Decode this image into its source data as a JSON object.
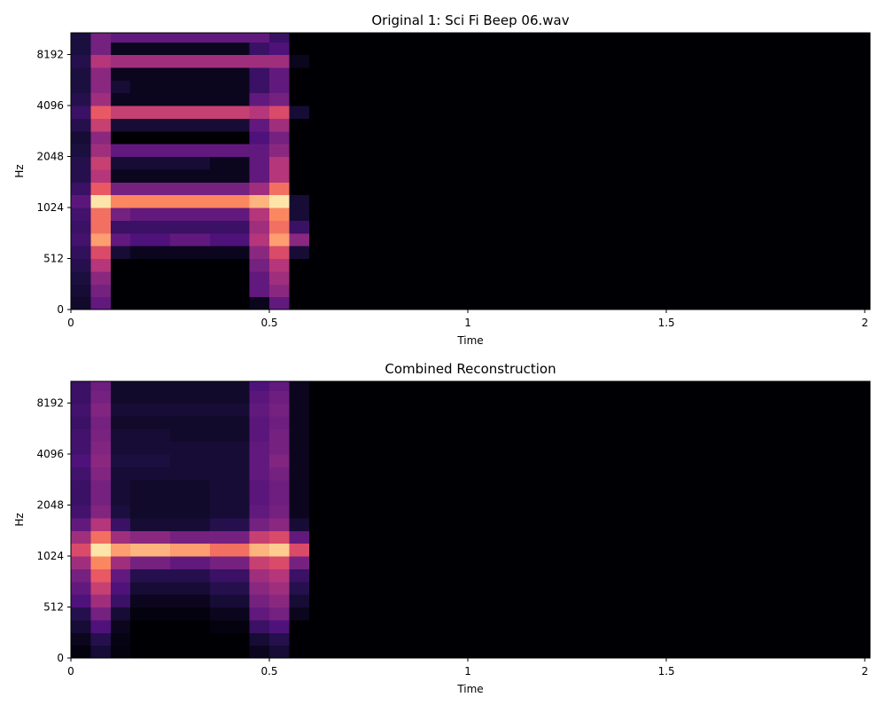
{
  "chart_data": [
    {
      "type": "spectrogram",
      "title": "Original 1: Sci Fi Beep 06.wav",
      "xlabel": "Time",
      "ylabel": "Hz",
      "xlim": [
        0,
        2.013
      ],
      "xticks": [
        0,
        0.5,
        1,
        1.5,
        2
      ],
      "ylim": [
        0,
        11025
      ],
      "yticks": [
        0,
        512,
        1024,
        2048,
        4096,
        8192
      ],
      "yscale": "symlog",
      "linthresh": 512,
      "colormap": "magma",
      "xbins": [
        0,
        0.05,
        0.1,
        0.15,
        0.25,
        0.35,
        0.45,
        0.5,
        0.55,
        0.6,
        2.013
      ],
      "ybins": [
        0,
        128,
        256,
        384,
        512,
        609,
        724,
        861,
        1024,
        1218,
        1448,
        1722,
        2048,
        2435,
        2896,
        3444,
        4096,
        4871,
        5793,
        6889,
        8192,
        9742,
        11025
      ],
      "z": [
        [
          0.08,
          0.3,
          0,
          0,
          0,
          0,
          0.05,
          0.3,
          0,
          0
        ],
        [
          0.1,
          0.35,
          0,
          0,
          0,
          0,
          0.3,
          0.4,
          0,
          0
        ],
        [
          0.12,
          0.4,
          0,
          0,
          0,
          0,
          0.3,
          0.45,
          0,
          0
        ],
        [
          0.15,
          0.5,
          0,
          0,
          0,
          0,
          0.35,
          0.5,
          0,
          0
        ],
        [
          0.18,
          0.6,
          0.1,
          0.05,
          0.05,
          0.05,
          0.4,
          0.6,
          0.1,
          0
        ],
        [
          0.22,
          0.8,
          0.3,
          0.25,
          0.3,
          0.25,
          0.5,
          0.8,
          0.4,
          0
        ],
        [
          0.2,
          0.7,
          0.2,
          0.2,
          0.2,
          0.2,
          0.45,
          0.7,
          0.2,
          0
        ],
        [
          0.22,
          0.7,
          0.35,
          0.3,
          0.3,
          0.3,
          0.5,
          0.75,
          0.1,
          0
        ],
        [
          0.28,
          0.95,
          0.75,
          0.75,
          0.75,
          0.75,
          0.85,
          0.95,
          0.1,
          0
        ],
        [
          0.2,
          0.65,
          0.35,
          0.35,
          0.35,
          0.35,
          0.45,
          0.7,
          0,
          0
        ],
        [
          0.15,
          0.5,
          0.05,
          0.05,
          0.05,
          0.05,
          0.3,
          0.5,
          0,
          0
        ],
        [
          0.15,
          0.55,
          0.1,
          0.1,
          0.1,
          0.05,
          0.3,
          0.5,
          0,
          0
        ],
        [
          0.12,
          0.45,
          0.3,
          0.3,
          0.3,
          0.3,
          0.3,
          0.4,
          0,
          0
        ],
        [
          0.1,
          0.4,
          0,
          0,
          0,
          0,
          0.25,
          0.35,
          0,
          0
        ],
        [
          0.15,
          0.55,
          0.1,
          0.1,
          0.1,
          0.1,
          0.3,
          0.45,
          0,
          0
        ],
        [
          0.2,
          0.65,
          0.55,
          0.55,
          0.55,
          0.55,
          0.5,
          0.6,
          0.1,
          0
        ],
        [
          0.15,
          0.45,
          0.05,
          0.05,
          0.05,
          0.05,
          0.3,
          0.35,
          0,
          0
        ],
        [
          0.12,
          0.4,
          0.1,
          0.05,
          0.05,
          0.05,
          0.2,
          0.3,
          0,
          0
        ],
        [
          0.12,
          0.4,
          0.05,
          0.05,
          0.05,
          0.05,
          0.2,
          0.3,
          0,
          0
        ],
        [
          0.15,
          0.5,
          0.45,
          0.45,
          0.45,
          0.45,
          0.45,
          0.45,
          0.05,
          0
        ],
        [
          0.12,
          0.35,
          0.05,
          0.05,
          0.05,
          0.05,
          0.2,
          0.25,
          0,
          0
        ],
        [
          0.12,
          0.35,
          0.3,
          0.3,
          0.3,
          0.3,
          0.3,
          0.2,
          0,
          0
        ]
      ]
    },
    {
      "type": "spectrogram",
      "title": "Combined Reconstruction",
      "xlabel": "Time",
      "ylabel": "Hz",
      "xlim": [
        0,
        2.013
      ],
      "xticks": [
        0,
        0.5,
        1,
        1.5,
        2
      ],
      "ylim": [
        0,
        11025
      ],
      "yticks": [
        0,
        512,
        1024,
        2048,
        4096,
        8192
      ],
      "yscale": "symlog",
      "linthresh": 512,
      "colormap": "magma",
      "xbins": [
        0,
        0.05,
        0.1,
        0.15,
        0.25,
        0.35,
        0.45,
        0.5,
        0.55,
        0.6,
        2.013
      ],
      "ybins": [
        0,
        128,
        256,
        384,
        512,
        609,
        724,
        861,
        1024,
        1218,
        1448,
        1722,
        2048,
        2435,
        2896,
        3444,
        4096,
        4871,
        5793,
        6889,
        8192,
        9742,
        11025
      ],
      "z": [
        [
          0.02,
          0.1,
          0.02,
          0,
          0,
          0,
          0.05,
          0.1,
          0,
          0
        ],
        [
          0.05,
          0.15,
          0.03,
          0,
          0,
          0,
          0.1,
          0.15,
          0,
          0
        ],
        [
          0.1,
          0.25,
          0.05,
          0,
          0,
          0.02,
          0.2,
          0.25,
          0,
          0
        ],
        [
          0.15,
          0.35,
          0.1,
          0.02,
          0.02,
          0.05,
          0.3,
          0.35,
          0.05,
          0
        ],
        [
          0.25,
          0.45,
          0.2,
          0.05,
          0.05,
          0.1,
          0.35,
          0.4,
          0.1,
          0
        ],
        [
          0.3,
          0.55,
          0.25,
          0.1,
          0.1,
          0.15,
          0.4,
          0.45,
          0.15,
          0
        ],
        [
          0.35,
          0.65,
          0.3,
          0.15,
          0.15,
          0.2,
          0.45,
          0.5,
          0.2,
          0
        ],
        [
          0.45,
          0.75,
          0.45,
          0.35,
          0.3,
          0.35,
          0.55,
          0.6,
          0.35,
          0
        ],
        [
          0.6,
          0.95,
          0.8,
          0.85,
          0.8,
          0.7,
          0.85,
          0.9,
          0.6,
          0
        ],
        [
          0.45,
          0.7,
          0.45,
          0.4,
          0.35,
          0.35,
          0.55,
          0.6,
          0.3,
          0
        ],
        [
          0.3,
          0.5,
          0.2,
          0.1,
          0.1,
          0.15,
          0.35,
          0.4,
          0.1,
          0
        ],
        [
          0.22,
          0.38,
          0.12,
          0.08,
          0.08,
          0.1,
          0.3,
          0.35,
          0.05,
          0
        ],
        [
          0.2,
          0.35,
          0.1,
          0.08,
          0.08,
          0.1,
          0.28,
          0.33,
          0.05,
          0
        ],
        [
          0.2,
          0.35,
          0.1,
          0.08,
          0.08,
          0.1,
          0.28,
          0.33,
          0.05,
          0
        ],
        [
          0.22,
          0.38,
          0.1,
          0.1,
          0.1,
          0.1,
          0.3,
          0.35,
          0.05,
          0
        ],
        [
          0.25,
          0.4,
          0.12,
          0.12,
          0.1,
          0.1,
          0.3,
          0.38,
          0.05,
          0
        ],
        [
          0.22,
          0.38,
          0.1,
          0.1,
          0.1,
          0.1,
          0.3,
          0.35,
          0.05,
          0
        ],
        [
          0.22,
          0.36,
          0.1,
          0.1,
          0.08,
          0.08,
          0.28,
          0.35,
          0.05,
          0
        ],
        [
          0.2,
          0.35,
          0.08,
          0.08,
          0.08,
          0.08,
          0.28,
          0.33,
          0.05,
          0
        ],
        [
          0.22,
          0.38,
          0.1,
          0.1,
          0.1,
          0.1,
          0.3,
          0.35,
          0.05,
          0
        ],
        [
          0.2,
          0.35,
          0.08,
          0.08,
          0.08,
          0.08,
          0.28,
          0.33,
          0.05,
          0
        ],
        [
          0.2,
          0.33,
          0.08,
          0.08,
          0.08,
          0.08,
          0.25,
          0.3,
          0.05,
          0
        ]
      ]
    }
  ]
}
